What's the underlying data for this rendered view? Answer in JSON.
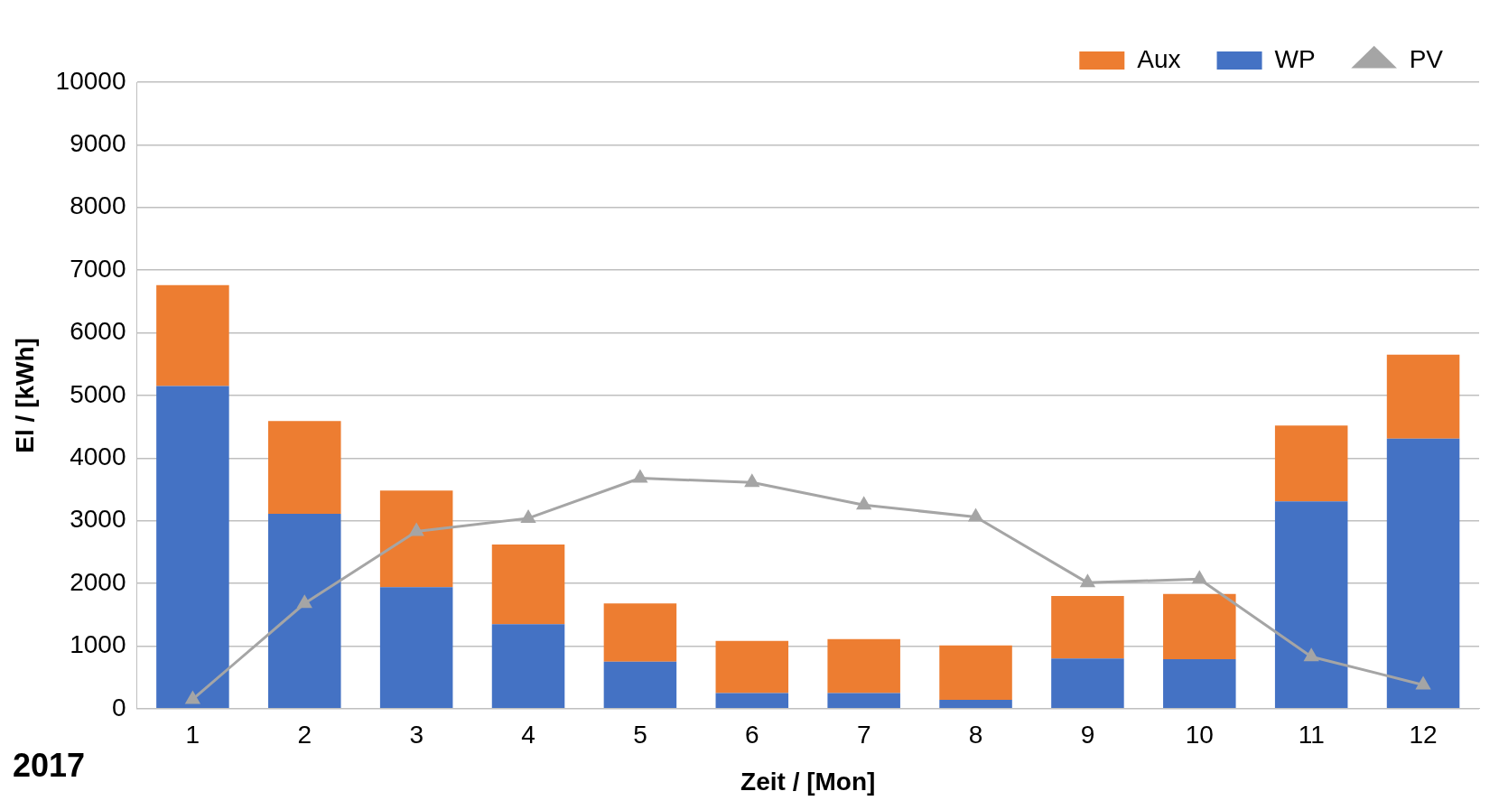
{
  "chart_data": {
    "type": "bar",
    "xlabel": "Zeit / [Mon]",
    "ylabel": "El / [kWh]",
    "categories": [
      "1",
      "2",
      "3",
      "4",
      "5",
      "6",
      "7",
      "8",
      "9",
      "10",
      "11",
      "12"
    ],
    "stacked": true,
    "series": [
      {
        "name": "WP",
        "color": "#4472c4",
        "values": [
          5150,
          3110,
          1940,
          1350,
          750,
          250,
          250,
          140,
          800,
          790,
          3310,
          4310
        ]
      },
      {
        "name": "Aux",
        "color": "#ed7d31",
        "values": [
          1610,
          1480,
          1540,
          1270,
          930,
          830,
          860,
          870,
          1000,
          1040,
          1210,
          1340
        ]
      },
      {
        "name": "PV",
        "type": "line",
        "color": "#a5a5a5",
        "marker": "triangle",
        "values": [
          150,
          1680,
          2830,
          3040,
          3680,
          3610,
          3250,
          3060,
          2010,
          2070,
          830,
          380
        ]
      }
    ],
    "ylim": [
      0,
      10000
    ],
    "yticks": [
      0,
      1000,
      2000,
      3000,
      4000,
      5000,
      6000,
      7000,
      8000,
      9000,
      10000
    ],
    "grid": "y",
    "legend": "top right",
    "annotations": [
      "2017"
    ]
  }
}
